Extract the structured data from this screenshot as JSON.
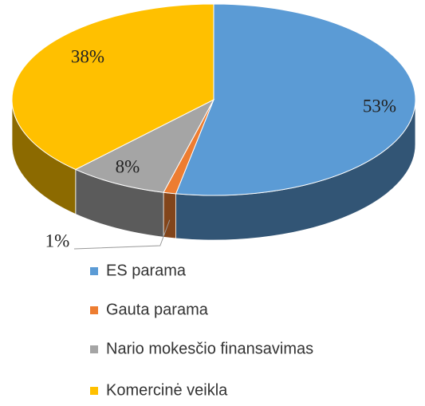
{
  "chart_data": {
    "type": "pie",
    "categories": [
      "ES parama",
      "Gauta parama",
      "Nario mokesčio finansavimas",
      "Komercinė veikla"
    ],
    "values": [
      53,
      1,
      8,
      38
    ],
    "value_labels": [
      "53%",
      "1%",
      "8%",
      "38%"
    ],
    "colors": [
      "#5b9bd5",
      "#ed7d31",
      "#a5a5a5",
      "#ffc000"
    ],
    "legend": "bottom"
  }
}
